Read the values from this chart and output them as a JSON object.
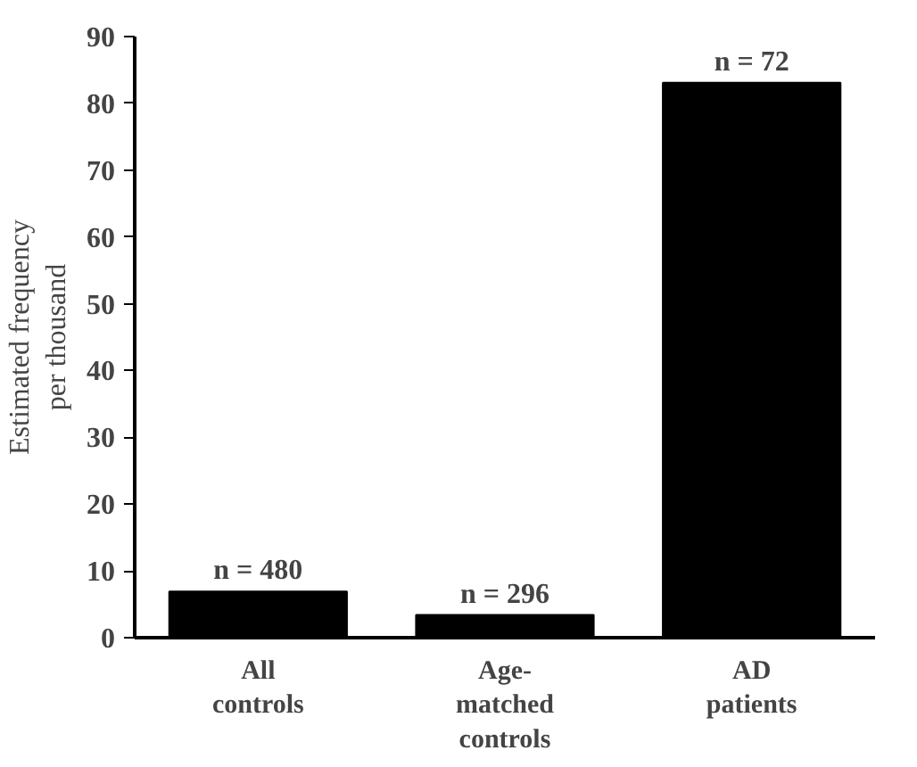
{
  "chart_data": {
    "type": "bar",
    "ylabel": "Estimated frequency per thousand",
    "categories": [
      "All controls",
      "Age-matched controls",
      "AD patients"
    ],
    "values": [
      6.9,
      3.4,
      83.1
    ],
    "color": "#000000",
    "ylim": [
      0,
      90
    ],
    "yticks": [
      0,
      10,
      20,
      30,
      40,
      50,
      60,
      70,
      80,
      90
    ],
    "annotations": [
      {
        "text": "n = 480",
        "x": "All controls",
        "y": 6.9
      },
      {
        "text": "n = 296",
        "x": "Age-matched controls",
        "y": 3.4
      },
      {
        "text": "n = 72",
        "x": "AD patients",
        "y": 83.1
      }
    ]
  }
}
